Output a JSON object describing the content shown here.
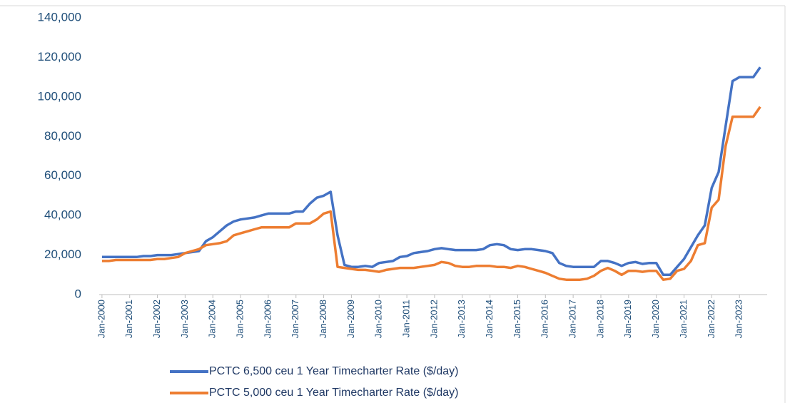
{
  "chart_data": {
    "type": "line",
    "x": [
      2000,
      2000.25,
      2000.5,
      2000.75,
      2001,
      2001.25,
      2001.5,
      2001.75,
      2002,
      2002.25,
      2002.5,
      2002.75,
      2003,
      2003.25,
      2003.5,
      2003.75,
      2004,
      2004.25,
      2004.5,
      2004.75,
      2005,
      2005.25,
      2005.5,
      2005.75,
      2006,
      2006.25,
      2006.5,
      2006.75,
      2007,
      2007.25,
      2007.5,
      2007.75,
      2008,
      2008.25,
      2008.5,
      2008.75,
      2009,
      2009.25,
      2009.5,
      2009.75,
      2010,
      2010.25,
      2010.5,
      2010.75,
      2011,
      2011.25,
      2011.5,
      2011.75,
      2012,
      2012.25,
      2012.5,
      2012.75,
      2013,
      2013.25,
      2013.5,
      2013.75,
      2014,
      2014.25,
      2014.5,
      2014.75,
      2015,
      2015.25,
      2015.5,
      2015.75,
      2016,
      2016.25,
      2016.5,
      2016.75,
      2017,
      2017.25,
      2017.5,
      2017.75,
      2018,
      2018.25,
      2018.5,
      2018.75,
      2019,
      2019.25,
      2019.5,
      2019.75,
      2020,
      2020.25,
      2020.5,
      2020.75,
      2021,
      2021.25,
      2021.5,
      2021.75,
      2022,
      2022.25,
      2022.5,
      2022.75,
      2023,
      2023.25,
      2023.5,
      2023.75
    ],
    "series": [
      {
        "name": "PCTC 6,500 ceu 1 Year Timecharter Rate ($/day)",
        "color": "#4472c4",
        "values": [
          19000,
          19000,
          19000,
          19000,
          19000,
          19000,
          19500,
          19500,
          20000,
          20000,
          20000,
          20500,
          21000,
          21500,
          22000,
          27000,
          29000,
          32000,
          35000,
          37000,
          38000,
          38500,
          39000,
          40000,
          41000,
          41000,
          41000,
          41000,
          42000,
          42000,
          46000,
          49000,
          50000,
          52000,
          30000,
          15000,
          14000,
          14000,
          14500,
          14000,
          16000,
          16500,
          17000,
          19000,
          19500,
          21000,
          21500,
          22000,
          23000,
          23500,
          23000,
          22500,
          22500,
          22500,
          22500,
          23000,
          25000,
          25500,
          25000,
          23000,
          22500,
          23000,
          23000,
          22500,
          22000,
          21000,
          16000,
          14500,
          14000,
          14000,
          14000,
          14000,
          17000,
          17000,
          16000,
          14500,
          16000,
          16500,
          15500,
          16000,
          16000,
          10000,
          10000,
          14000,
          18000,
          24000,
          30000,
          35000,
          54000,
          62000,
          85000,
          108000,
          110000,
          110000,
          110000,
          115000
        ]
      },
      {
        "name": "PCTC 5,000 ceu 1 Year Timecharter Rate ($/day)",
        "color": "#ed7d31",
        "values": [
          17000,
          17000,
          17500,
          17500,
          17500,
          17500,
          17500,
          17500,
          18000,
          18000,
          18500,
          19000,
          21000,
          22000,
          23000,
          25000,
          25500,
          26000,
          27000,
          30000,
          31000,
          32000,
          33000,
          34000,
          34000,
          34000,
          34000,
          34000,
          36000,
          36000,
          36000,
          38000,
          41000,
          42000,
          14000,
          13500,
          13000,
          12500,
          12500,
          12000,
          11500,
          12500,
          13000,
          13500,
          13500,
          13500,
          14000,
          14500,
          15000,
          16500,
          16000,
          14500,
          14000,
          14000,
          14500,
          14500,
          14500,
          14000,
          14000,
          13500,
          14500,
          14000,
          13000,
          12000,
          11000,
          9500,
          8000,
          7500,
          7500,
          7500,
          8000,
          9500,
          12000,
          13500,
          12000,
          10000,
          12000,
          12000,
          11500,
          12000,
          12000,
          7500,
          8000,
          12000,
          13000,
          17000,
          25000,
          26000,
          44000,
          48000,
          75000,
          90000,
          90000,
          90000,
          90000,
          95000
        ]
      }
    ],
    "xlim": [
      1999.9,
      2024
    ],
    "xticks": [
      {
        "value": 2000,
        "label": "Jan-2000"
      },
      {
        "value": 2001,
        "label": "Jan-2001"
      },
      {
        "value": 2002,
        "label": "Jan-2002"
      },
      {
        "value": 2003,
        "label": "Jan-2003"
      },
      {
        "value": 2004,
        "label": "Jan-2004"
      },
      {
        "value": 2005,
        "label": "Jan-2005"
      },
      {
        "value": 2006,
        "label": "Jan-2006"
      },
      {
        "value": 2007,
        "label": "Jan-2007"
      },
      {
        "value": 2008,
        "label": "Jan-2008"
      },
      {
        "value": 2009,
        "label": "Jan-2009"
      },
      {
        "value": 2010,
        "label": "Jan-2010"
      },
      {
        "value": 2011,
        "label": "Jan-2011"
      },
      {
        "value": 2012,
        "label": "Jan-2012"
      },
      {
        "value": 2013,
        "label": "Jan-2013"
      },
      {
        "value": 2014,
        "label": "Jan-2014"
      },
      {
        "value": 2015,
        "label": "Jan-2015"
      },
      {
        "value": 2016,
        "label": "Jan-2016"
      },
      {
        "value": 2017,
        "label": "Jan-2017"
      },
      {
        "value": 2018,
        "label": "Jan-2018"
      },
      {
        "value": 2019,
        "label": "Jan-2019"
      },
      {
        "value": 2020,
        "label": "Jan-2020"
      },
      {
        "value": 2021,
        "label": "Jan-2021"
      },
      {
        "value": 2022,
        "label": "Jan-2022"
      },
      {
        "value": 2023,
        "label": "Jan-2023"
      }
    ],
    "ylim": [
      0,
      140000
    ],
    "yticks": [
      0,
      {
        "value": 20000,
        "label": "20,000"
      },
      {
        "value": 40000,
        "label": "40,000"
      },
      {
        "value": 60000,
        "label": "60,000"
      },
      {
        "value": 80000,
        "label": "80,000"
      },
      {
        "value": 100000,
        "label": "100,000"
      },
      {
        "value": 120000,
        "label": "120,000"
      },
      {
        "value": 140000,
        "label": "140,000"
      }
    ],
    "grid": false
  }
}
